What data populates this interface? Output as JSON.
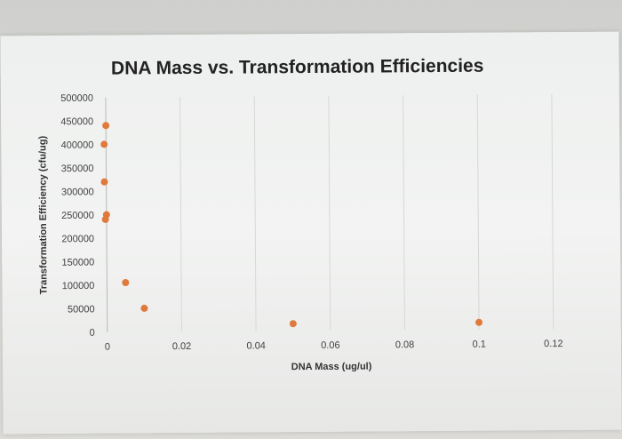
{
  "chart_data": {
    "type": "scatter",
    "title": "DNA Mass vs. Transformation Efficiencies",
    "xlabel": "DNA Mass (ug/ul)",
    "ylabel": "Transformation Efficiency (cfu/ug)",
    "xlim": [
      0,
      0.12
    ],
    "ylim": [
      0,
      500000
    ],
    "x_ticks": [
      "0",
      "0.02",
      "0.04",
      "0.06",
      "0.08",
      "0.1",
      "0.12"
    ],
    "y_ticks": [
      "0",
      "50000",
      "100000",
      "150000",
      "200000",
      "250000",
      "300000",
      "350000",
      "400000",
      "450000",
      "500000"
    ],
    "x_tick_values": [
      0,
      0.02,
      0.04,
      0.06,
      0.08,
      0.1,
      0.12
    ],
    "y_tick_values": [
      0,
      50000,
      100000,
      150000,
      200000,
      250000,
      300000,
      350000,
      400000,
      450000,
      500000
    ],
    "grid": "vertical",
    "marker_color": "#e07a3c",
    "points": [
      {
        "x": 0,
        "y": 440000
      },
      {
        "x": -0.0005,
        "y": 400000
      },
      {
        "x": -0.0005,
        "y": 320000
      },
      {
        "x": 0,
        "y": 250000
      },
      {
        "x": -0.0003,
        "y": 240000
      },
      {
        "x": 0.005,
        "y": 105000
      },
      {
        "x": 0.01,
        "y": 50000
      },
      {
        "x": 0.05,
        "y": 15000
      },
      {
        "x": 0.1,
        "y": 15000
      }
    ]
  }
}
